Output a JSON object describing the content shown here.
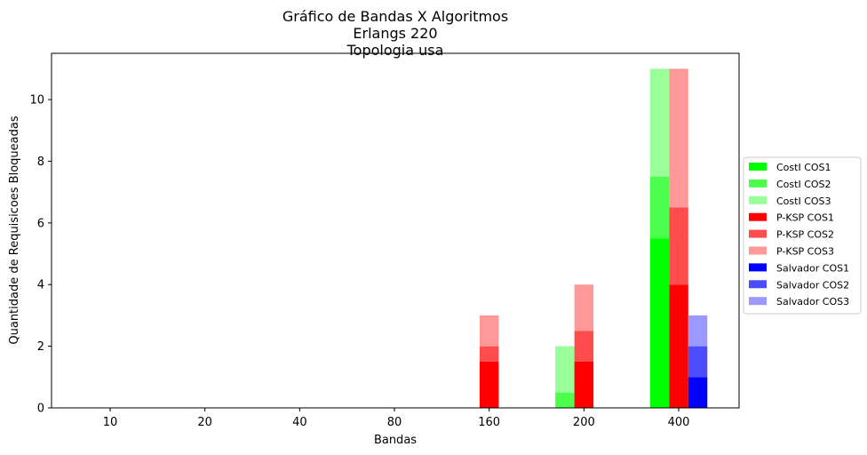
{
  "chart_data": {
    "type": "bar",
    "stacked": true,
    "title_lines": [
      "Gráfico de Bandas X Algoritmos",
      "Erlangs 220",
      "Topologia usa"
    ],
    "xlabel": "Bandas",
    "ylabel": "Quantidade de Requisicoes Bloqueadas",
    "categories": [
      "10",
      "20",
      "40",
      "80",
      "160",
      "200",
      "400"
    ],
    "ylim": [
      0,
      11.5
    ],
    "yticks": [
      0,
      2,
      4,
      6,
      8,
      10
    ],
    "grid": false,
    "legend_position": "right",
    "groups": [
      {
        "name": "CostI",
        "series": [
          {
            "name": "CostI COS1",
            "color": "#00ff00",
            "values": [
              0,
              0,
              0,
              0,
              0,
              0,
              5.5
            ]
          },
          {
            "name": "CostI COS2",
            "color": "#4cff4c",
            "values": [
              0,
              0,
              0,
              0,
              0,
              0.5,
              2
            ]
          },
          {
            "name": "CostI COS3",
            "color": "#99ff99",
            "values": [
              0,
              0,
              0,
              0,
              0,
              1.5,
              3.5
            ]
          }
        ]
      },
      {
        "name": "P-KSP",
        "series": [
          {
            "name": "P-KSP COS1",
            "color": "#ff0000",
            "values": [
              0,
              0,
              0,
              0,
              1.5,
              1.5,
              4
            ]
          },
          {
            "name": "P-KSP COS2",
            "color": "#ff4c4c",
            "values": [
              0,
              0,
              0,
              0,
              0.5,
              1,
              2.5
            ]
          },
          {
            "name": "P-KSP COS3",
            "color": "#ff9999",
            "values": [
              0,
              0,
              0,
              0,
              1,
              1.5,
              4.5
            ]
          }
        ]
      },
      {
        "name": "Salvador",
        "series": [
          {
            "name": "Salvador COS1",
            "color": "#0000ff",
            "values": [
              0,
              0,
              0,
              0,
              0,
              0,
              1
            ]
          },
          {
            "name": "Salvador COS2",
            "color": "#4c4cff",
            "values": [
              0,
              0,
              0,
              0,
              0,
              0,
              1
            ]
          },
          {
            "name": "Salvador COS3",
            "color": "#9999ff",
            "values": [
              0,
              0,
              0,
              0,
              0,
              0,
              1
            ]
          }
        ]
      }
    ]
  }
}
